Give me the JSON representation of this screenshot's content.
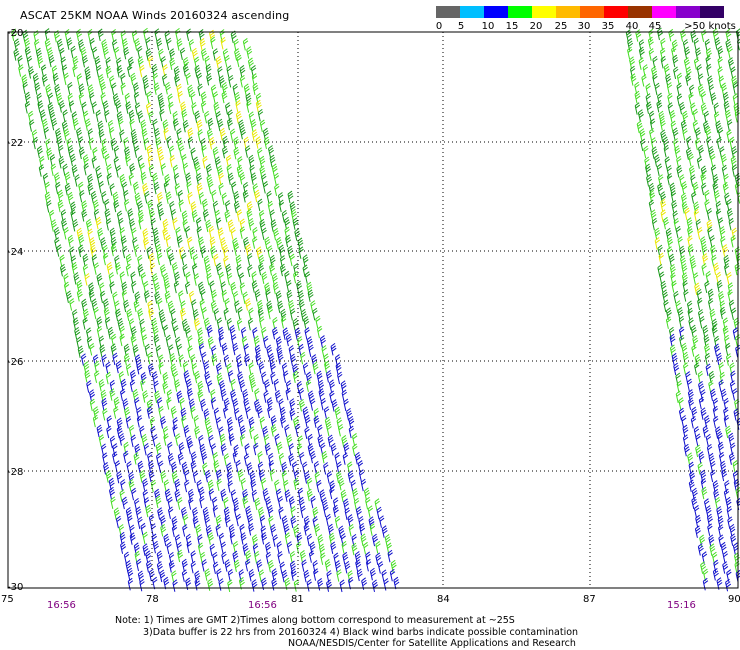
{
  "title": "ASCAT 25KM NOAA Winds 20160324 ascending",
  "scale": {
    "colors": [
      "#666666",
      "#00bfff",
      "#0000ff",
      "#00ff00",
      "#ffff00",
      "#ffbb00",
      "#ff6600",
      "#ff0000",
      "#993300",
      "#ff00ff",
      "#8800cc",
      "#330066"
    ],
    "ticks": [
      "0",
      "5",
      "10",
      "15",
      "20",
      "25",
      "30",
      "35",
      "40",
      "45",
      ">50 knots"
    ]
  },
  "axes": {
    "lat_labels": [
      "-20",
      "-22",
      "-24",
      "-26",
      "-28",
      "-30"
    ],
    "lon_labels": [
      "75",
      "78",
      "81",
      "84",
      "87",
      "90"
    ],
    "time_labels": [
      "16:56",
      "16:56",
      "15:16"
    ]
  },
  "notes": {
    "line1": "Note: 1) Times are GMT 2)Times along bottom correspond to measurement at ~25S",
    "line2": "3)Data buffer is 22 hrs from 20160324 4) Black wind barbs indicate possible contamination",
    "line3": "NOAA/NESDIS/Center for Satellite Applications and Research"
  }
}
